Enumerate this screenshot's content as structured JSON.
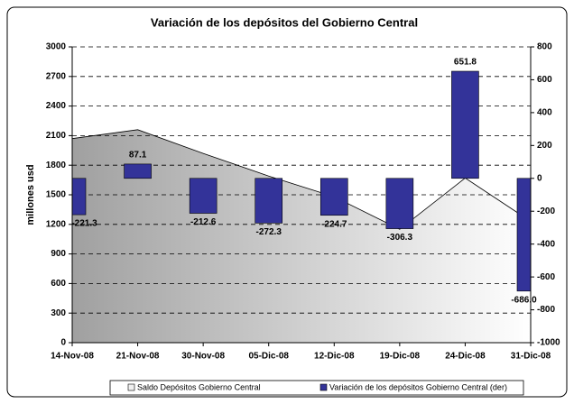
{
  "chart_data": {
    "type": "combo",
    "title": "Variación de los depósitos del Gobierno Central",
    "ylabel": "millones usd",
    "categories": [
      "14-Nov-08",
      "21-Nov-08",
      "30-Nov-08",
      "05-Dic-08",
      "12-Dic-08",
      "19-Dic-08",
      "24-Dic-08",
      "31-Dic-08"
    ],
    "series": [
      {
        "name": "Saldo Depósitos Gobierno Central",
        "type": "area",
        "color": "#a0a0a0",
        "values": [
          2070,
          2160,
          1920,
          1690,
          1480,
          1150,
          1670,
          1230
        ]
      },
      {
        "name": "Variación de los depósitos Gobierno Central (der)",
        "type": "bar",
        "axis": "y2",
        "color": "#333399",
        "values": [
          -221.3,
          87.1,
          -212.6,
          -272.3,
          -224.7,
          -306.3,
          651.8,
          -686.0
        ],
        "value_labels": [
          "-221.3",
          "87.1",
          "-212.6",
          "-272.3",
          "-224.7",
          "-306.3",
          "651.8",
          "-686.0"
        ]
      }
    ],
    "ylim": [
      0,
      3000
    ],
    "yticks": [
      0,
      300,
      600,
      900,
      1200,
      1500,
      1800,
      2100,
      2400,
      2700,
      3000
    ],
    "y2lim": [
      -1000,
      800
    ],
    "y2ticks": [
      -1000,
      -800,
      -600,
      -400,
      -200,
      0,
      200,
      400,
      600,
      800
    ],
    "grid": true
  }
}
